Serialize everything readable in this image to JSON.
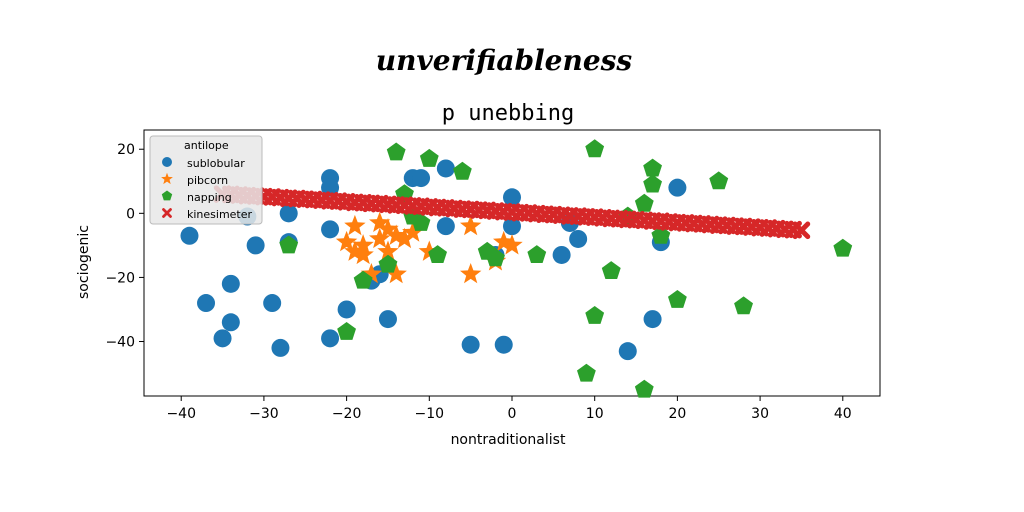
{
  "chart_data": {
    "type": "scatter",
    "title": "p unebbing",
    "suptitle": "unverifiableness",
    "xlabel": "nontraditionalist",
    "ylabel": "sociogenic",
    "xlim": [
      -44.5,
      44.5
    ],
    "ylim": [
      -57,
      26
    ],
    "xticks": [
      -40,
      -30,
      -20,
      -10,
      0,
      10,
      20,
      30,
      40
    ],
    "yticks": [
      -40,
      -20,
      0,
      20
    ],
    "xtick_labels": [
      "−40",
      "−30",
      "−20",
      "−10",
      "0",
      "10",
      "20",
      "30",
      "40"
    ],
    "ytick_labels": [
      "−40",
      "−20",
      "0",
      "20"
    ],
    "grid": false,
    "legend": {
      "title": "antilope",
      "placement": "upper-left",
      "entries": [
        "sublobular",
        "pibcorn",
        "napping",
        "kinesimeter"
      ]
    },
    "series": [
      {
        "name": "sublobular",
        "marker": "circle",
        "color": "#1f77b4",
        "points": [
          [
            -39,
            -7
          ],
          [
            -37,
            -28
          ],
          [
            -35,
            -39
          ],
          [
            -34,
            -22
          ],
          [
            -34,
            -34
          ],
          [
            -32,
            -1
          ],
          [
            -31,
            -10
          ],
          [
            -29,
            -28
          ],
          [
            -28,
            -42
          ],
          [
            -27,
            0
          ],
          [
            -27,
            -9
          ],
          [
            -22,
            11
          ],
          [
            -22,
            8
          ],
          [
            -22,
            -5
          ],
          [
            -22,
            -39
          ],
          [
            -20,
            -30
          ],
          [
            -17,
            -21
          ],
          [
            -16,
            -19
          ],
          [
            -15,
            -33
          ],
          [
            -12,
            11
          ],
          [
            -11,
            11
          ],
          [
            -8,
            14
          ],
          [
            -8,
            -4
          ],
          [
            -5,
            -41
          ],
          [
            -2,
            -13
          ],
          [
            -1,
            -41
          ],
          [
            0,
            5
          ],
          [
            0,
            -4
          ],
          [
            6,
            -13
          ],
          [
            7,
            -3
          ],
          [
            8,
            -8
          ],
          [
            14,
            -43
          ],
          [
            17,
            -33
          ],
          [
            18,
            -9
          ],
          [
            20,
            8
          ]
        ]
      },
      {
        "name": "pibcorn",
        "marker": "star",
        "color": "#ff7f0e",
        "points": [
          [
            -20,
            -9
          ],
          [
            -19,
            -4
          ],
          [
            -19,
            -12
          ],
          [
            -18,
            -10
          ],
          [
            -18,
            -13
          ],
          [
            -17,
            -19
          ],
          [
            -16,
            -3
          ],
          [
            -16,
            -8
          ],
          [
            -15,
            -12
          ],
          [
            -15,
            -5
          ],
          [
            -14,
            -7
          ],
          [
            -14,
            -19
          ],
          [
            -13,
            -8
          ],
          [
            -12,
            -6
          ],
          [
            -10,
            -12
          ],
          [
            -5,
            -4
          ],
          [
            -5,
            -19
          ],
          [
            -2,
            -15
          ],
          [
            -1,
            -9
          ],
          [
            0,
            -10
          ]
        ]
      },
      {
        "name": "napping",
        "marker": "pentagon",
        "color": "#2ca02c",
        "points": [
          [
            -27,
            -10
          ],
          [
            -20,
            -37
          ],
          [
            -18,
            -21
          ],
          [
            -15,
            -16
          ],
          [
            -14,
            19
          ],
          [
            -13,
            6
          ],
          [
            -12,
            -1
          ],
          [
            -11,
            -3
          ],
          [
            -10,
            17
          ],
          [
            -9,
            -13
          ],
          [
            -6,
            13
          ],
          [
            -3,
            -12
          ],
          [
            -2,
            -14
          ],
          [
            3,
            -13
          ],
          [
            9,
            -50
          ],
          [
            10,
            20
          ],
          [
            10,
            -32
          ],
          [
            12,
            -18
          ],
          [
            14,
            -1
          ],
          [
            16,
            3
          ],
          [
            16,
            -55
          ],
          [
            17,
            9
          ],
          [
            17,
            14
          ],
          [
            18,
            -7
          ],
          [
            20,
            -27
          ],
          [
            25,
            10
          ],
          [
            28,
            -29
          ],
          [
            40,
            -11
          ]
        ]
      },
      {
        "name": "kinesimeter",
        "marker": "x",
        "color": "#d62728",
        "points": [
          [
            -35,
            6
          ],
          [
            -34,
            5.9
          ],
          [
            -33,
            5.7
          ],
          [
            -32,
            5.5
          ],
          [
            -31,
            5.4
          ],
          [
            -30,
            5.2
          ],
          [
            -29,
            5.1
          ],
          [
            -28,
            4.9
          ],
          [
            -27,
            4.7
          ],
          [
            -26,
            4.6
          ],
          [
            -25,
            4.4
          ],
          [
            -24,
            4.3
          ],
          [
            -23,
            4.1
          ],
          [
            -22,
            3.9
          ],
          [
            -21,
            3.8
          ],
          [
            -20,
            3.6
          ],
          [
            -19,
            3.4
          ],
          [
            -18,
            3.3
          ],
          [
            -17,
            3.1
          ],
          [
            -16,
            3
          ],
          [
            -15,
            2.8
          ],
          [
            -14,
            2.6
          ],
          [
            -13,
            2.5
          ],
          [
            -12,
            2.3
          ],
          [
            -11,
            2.2
          ],
          [
            -10,
            2
          ],
          [
            -9,
            1.8
          ],
          [
            -8,
            1.7
          ],
          [
            -7,
            1.5
          ],
          [
            -6,
            1.3
          ],
          [
            -5,
            1.2
          ],
          [
            -4,
            1
          ],
          [
            -3,
            0.9
          ],
          [
            -2,
            0.7
          ],
          [
            -1,
            0.5
          ],
          [
            0,
            0.4
          ],
          [
            1,
            0.2
          ],
          [
            2,
            0.1
          ],
          [
            3,
            -0.1
          ],
          [
            4,
            -0.3
          ],
          [
            5,
            -0.4
          ],
          [
            6,
            -0.6
          ],
          [
            7,
            -0.8
          ],
          [
            8,
            -0.9
          ],
          [
            9,
            -1.1
          ],
          [
            10,
            -1.2
          ],
          [
            11,
            -1.4
          ],
          [
            12,
            -1.6
          ],
          [
            13,
            -1.7
          ],
          [
            14,
            -1.9
          ],
          [
            15,
            -2
          ],
          [
            16,
            -2.2
          ],
          [
            17,
            -2.4
          ],
          [
            18,
            -2.5
          ],
          [
            19,
            -2.7
          ],
          [
            20,
            -2.9
          ],
          [
            21,
            -3
          ],
          [
            22,
            -3.2
          ],
          [
            23,
            -3.3
          ],
          [
            24,
            -3.5
          ],
          [
            25,
            -3.7
          ],
          [
            26,
            -3.8
          ],
          [
            27,
            -4
          ],
          [
            28,
            -4.1
          ],
          [
            29,
            -4.3
          ],
          [
            30,
            -4.5
          ],
          [
            31,
            -4.6
          ],
          [
            32,
            -4.8
          ],
          [
            33,
            -5
          ],
          [
            34,
            -5.1
          ],
          [
            35,
            -5.3
          ]
        ]
      }
    ]
  }
}
